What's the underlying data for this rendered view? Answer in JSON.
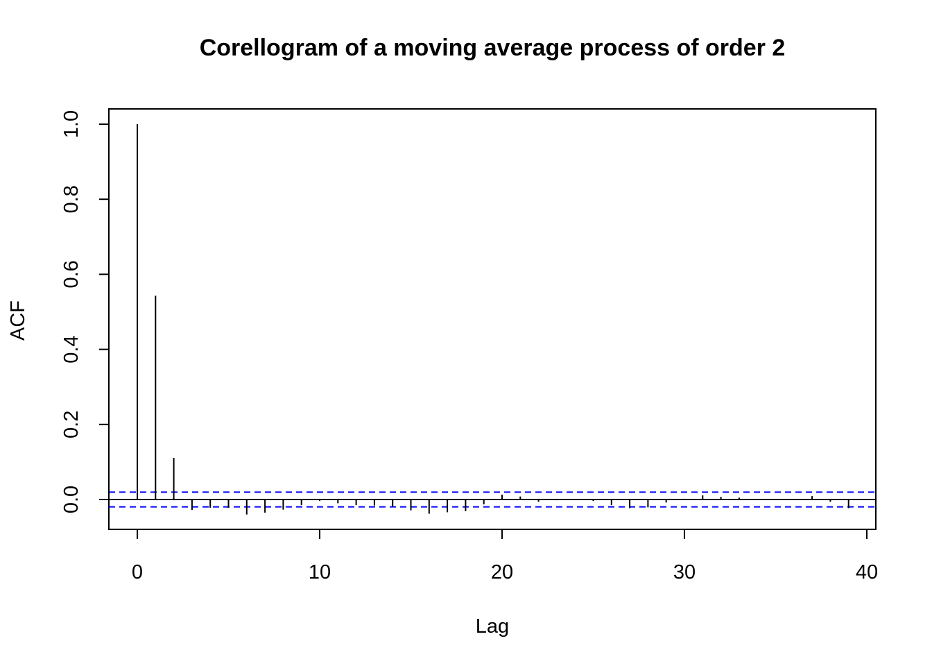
{
  "chart_data": {
    "type": "bar",
    "title": "Corellogram of a moving average process of order 2",
    "xlabel": "Lag",
    "ylabel": "ACF",
    "xlim": [
      -1.5,
      40.5
    ],
    "ylim": [
      -0.08,
      1.04
    ],
    "x_ticks": [
      {
        "value": 0,
        "label": "0"
      },
      {
        "value": 10,
        "label": "10"
      },
      {
        "value": 20,
        "label": "20"
      },
      {
        "value": 30,
        "label": "30"
      },
      {
        "value": 40,
        "label": "40"
      }
    ],
    "y_ticks": [
      {
        "value": 0.0,
        "label": "0.0"
      },
      {
        "value": 0.2,
        "label": "0.2"
      },
      {
        "value": 0.4,
        "label": "0.4"
      },
      {
        "value": 0.6,
        "label": "0.6"
      },
      {
        "value": 0.8,
        "label": "0.8"
      },
      {
        "value": 1.0,
        "label": "1.0"
      }
    ],
    "lags": [
      0,
      1,
      2,
      3,
      4,
      5,
      6,
      7,
      8,
      9,
      10,
      11,
      12,
      13,
      14,
      15,
      16,
      17,
      18,
      19,
      20,
      21,
      22,
      23,
      24,
      25,
      26,
      27,
      28,
      29,
      30,
      31,
      32,
      33,
      34,
      35,
      36,
      37,
      38,
      39,
      40
    ],
    "acf": [
      1.0,
      0.543,
      0.111,
      -0.028,
      -0.022,
      -0.022,
      -0.04,
      -0.035,
      -0.027,
      -0.015,
      -0.004,
      -0.01,
      -0.015,
      -0.016,
      -0.02,
      -0.029,
      -0.038,
      -0.034,
      -0.031,
      -0.013,
      0.013,
      0.008,
      -0.006,
      -0.002,
      0.0,
      -0.004,
      -0.015,
      -0.023,
      -0.021,
      -0.008,
      0.002,
      0.011,
      0.007,
      0.005,
      0.0,
      0.0,
      0.0,
      0.009,
      -0.006,
      -0.023,
      0.0
    ],
    "ci_bound": 0.0196,
    "colors": {
      "bars": "#000000",
      "zero_line": "#000000",
      "ci_lines": "#0000ff",
      "frame": "#000000"
    }
  }
}
